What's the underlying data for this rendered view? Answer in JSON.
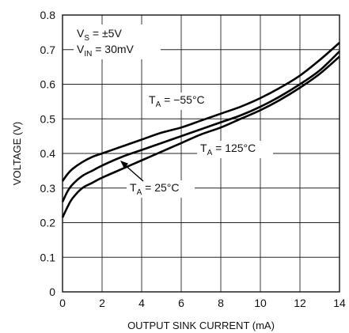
{
  "chart_data": {
    "type": "line",
    "title": "",
    "xlabel": "OUTPUT SINK CURRENT (mA)",
    "ylabel": "VOLTAGE (V)",
    "xlim": [
      0,
      14
    ],
    "ylim": [
      0,
      0.8
    ],
    "xticks": [
      0,
      2,
      4,
      6,
      8,
      10,
      12,
      14
    ],
    "yticks": [
      0,
      0.1,
      0.2,
      0.3,
      0.4,
      0.5,
      0.6,
      0.7,
      0.8
    ],
    "xtick_labels": [
      "0",
      "2",
      "4",
      "6",
      "8",
      "10",
      "12",
      "14"
    ],
    "ytick_labels": [
      "0",
      "0.1",
      "0.2",
      "0.3",
      "0.4",
      "0.5",
      "0.6",
      "0.7",
      "0.8"
    ],
    "grid": true,
    "conditions": [
      {
        "main": "V",
        "sub": "S",
        "rest": " = ±5V"
      },
      {
        "main": "V",
        "sub": "IN",
        "rest": " = 30mV"
      }
    ],
    "series": [
      {
        "label_main": "T",
        "label_sub": "A",
        "label_rest": " = −55°C",
        "x": [
          0,
          0.25,
          0.5,
          1,
          1.5,
          2,
          3,
          4,
          5,
          6,
          7,
          8,
          9,
          10,
          11,
          12,
          13,
          14
        ],
        "y": [
          0.32,
          0.34,
          0.355,
          0.375,
          0.39,
          0.4,
          0.42,
          0.44,
          0.46,
          0.475,
          0.495,
          0.515,
          0.535,
          0.56,
          0.59,
          0.625,
          0.67,
          0.72
        ]
      },
      {
        "label_main": "T",
        "label_sub": "A",
        "label_rest": " = 25°C",
        "x": [
          0,
          0.25,
          0.5,
          1,
          1.5,
          2,
          3,
          4,
          5,
          6,
          7,
          8,
          9,
          10,
          11,
          12,
          13,
          14
        ],
        "y": [
          0.26,
          0.29,
          0.31,
          0.335,
          0.35,
          0.365,
          0.39,
          0.41,
          0.43,
          0.45,
          0.47,
          0.49,
          0.51,
          0.535,
          0.565,
          0.6,
          0.64,
          0.695
        ]
      },
      {
        "label_main": "T",
        "label_sub": "A",
        "label_rest": " = 125°C",
        "x": [
          0,
          0.25,
          0.5,
          1,
          1.5,
          2,
          3,
          4,
          5,
          6,
          7,
          8,
          9,
          10,
          11,
          12,
          13,
          14
        ],
        "y": [
          0.215,
          0.245,
          0.27,
          0.3,
          0.315,
          0.33,
          0.355,
          0.38,
          0.405,
          0.43,
          0.455,
          0.475,
          0.5,
          0.525,
          0.555,
          0.59,
          0.63,
          0.68
        ]
      }
    ]
  }
}
